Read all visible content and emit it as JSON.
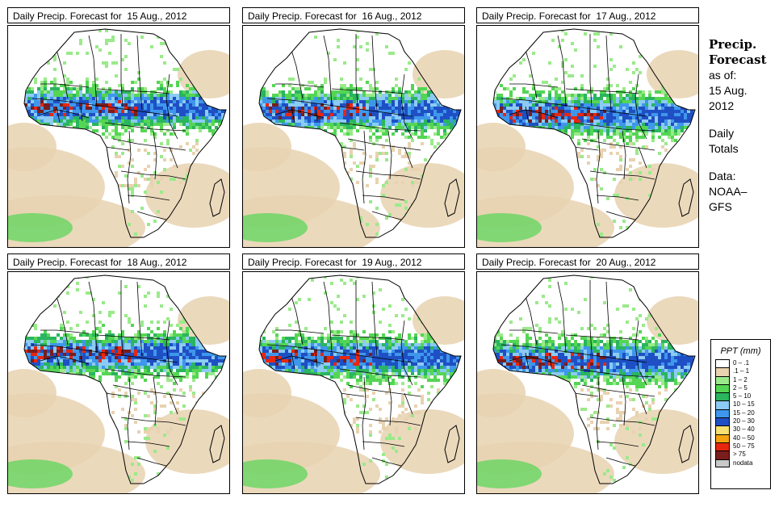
{
  "panels": [
    {
      "title": "Daily Precip. Forecast for  15 Aug., 2012",
      "day": 15
    },
    {
      "title": "Daily Precip. Forecast for  16 Aug., 2012",
      "day": 16
    },
    {
      "title": "Daily Precip. Forecast for  17 Aug., 2012",
      "day": 17
    },
    {
      "title": "Daily Precip. Forecast for  18 Aug., 2012",
      "day": 18
    },
    {
      "title": "Daily Precip. Forecast for  19 Aug., 2012",
      "day": 19
    },
    {
      "title": "Daily Precip. Forecast for  20 Aug., 2012",
      "day": 20
    }
  ],
  "sidebar": {
    "title_line1": "Precip.",
    "title_line2": "Forecast",
    "asof_label": "as of:",
    "date_line1": "15 Aug.",
    "date_line2": "2012",
    "daily_line1": "Daily",
    "daily_line2": "Totals",
    "data_line1": "Data:",
    "data_line2": "NOAA–",
    "data_line3": "GFS"
  },
  "legend": {
    "title": "PPT (mm)",
    "items": [
      {
        "label": "0 – .1",
        "color": "#ffffff"
      },
      {
        "label": ".1 – 1",
        "color": "#e8d2b0"
      },
      {
        "label": "1 – 2",
        "color": "#9aea8a"
      },
      {
        "label": "2 – 5",
        "color": "#54d654"
      },
      {
        "label": "5 – 10",
        "color": "#2ab55e"
      },
      {
        "label": "10 – 15",
        "color": "#8ccbf3"
      },
      {
        "label": "15 – 20",
        "color": "#3e97ec"
      },
      {
        "label": "20 – 30",
        "color": "#1f4fc4"
      },
      {
        "label": "30 – 40",
        "color": "#f5e070"
      },
      {
        "label": "40 – 50",
        "color": "#f5a40f"
      },
      {
        "label": "50 – 75",
        "color": "#e8260f"
      },
      {
        "label": "> 75",
        "color": "#7a1d1d"
      },
      {
        "label": "nodata",
        "color": "#c8c8c8"
      }
    ]
  }
}
